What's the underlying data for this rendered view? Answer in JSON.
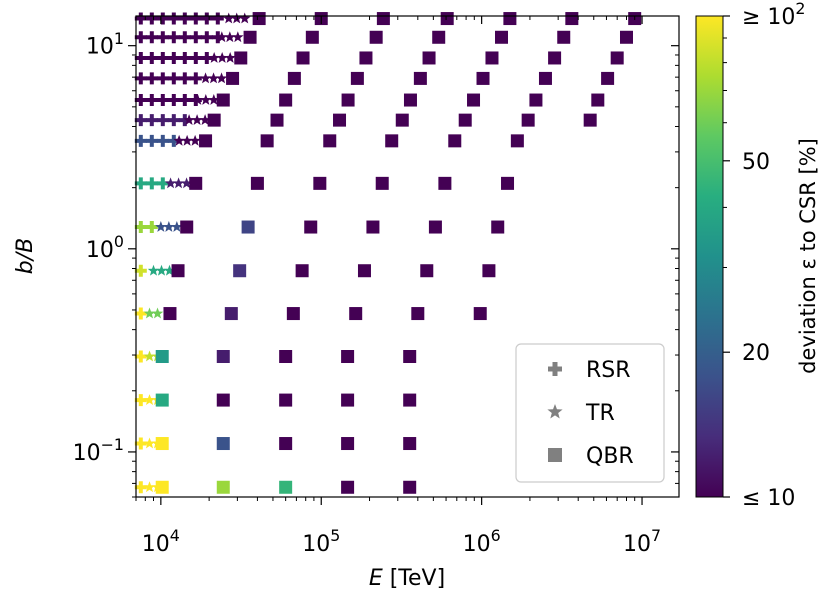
{
  "chart_data": {
    "type": "scatter",
    "xlabel": "E [TeV]",
    "ylabel": "b/B",
    "x_scale": "log",
    "y_scale": "log",
    "xlim": [
      7000,
      17000000
    ],
    "ylim": [
      0.06,
      14
    ],
    "x_ticks": [
      {
        "v": 10000,
        "label": "10^4"
      },
      {
        "v": 100000,
        "label": "10^5"
      },
      {
        "v": 1000000,
        "label": "10^6"
      },
      {
        "v": 10000000,
        "label": "10^7"
      }
    ],
    "y_ticks": [
      {
        "v": 0.1,
        "label": "10^−1"
      },
      {
        "v": 1,
        "label": "10^0"
      },
      {
        "v": 10,
        "label": "10^1"
      }
    ],
    "colorbar": {
      "label": "deviation ε to CSR [%]",
      "scale": "log",
      "range": [
        10,
        100
      ],
      "ticks": [
        {
          "v": 10,
          "label": "≤ 10"
        },
        {
          "v": 20,
          "label": "20"
        },
        {
          "v": 50,
          "label": "50"
        },
        {
          "v": 100,
          "label": "≥ 10²"
        }
      ],
      "colormap": "viridis"
    },
    "legend": {
      "placement": "lower-right",
      "entries": [
        {
          "label": "RSR",
          "marker": "plus"
        },
        {
          "label": "TR",
          "marker": "star"
        },
        {
          "label": "QBR",
          "marker": "square"
        }
      ]
    },
    "rows": [
      {
        "b": 13.6,
        "rsr": {
          "from": 7500,
          "to": 26000,
          "dev": 10
        },
        "tr": {
          "from": 26500,
          "to": 36000,
          "dev": 10
        },
        "qbr": [
          {
            "x": 41000,
            "dev": 10
          },
          {
            "x": 100000,
            "dev": 10
          },
          {
            "x": 244000,
            "dev": 10
          },
          {
            "x": 610000,
            "dev": 10
          },
          {
            "x": 1500000,
            "dev": 10
          },
          {
            "x": 3650000,
            "dev": 10
          },
          {
            "x": 9000000,
            "dev": 10
          }
        ]
      },
      {
        "b": 11.0,
        "rsr": {
          "from": 7500,
          "to": 23500,
          "dev": 10
        },
        "tr": {
          "from": 24000,
          "to": 32000,
          "dev": 10
        },
        "qbr": [
          {
            "x": 36000,
            "dev": 10
          },
          {
            "x": 88000,
            "dev": 10
          },
          {
            "x": 220000,
            "dev": 10
          },
          {
            "x": 540000,
            "dev": 10
          },
          {
            "x": 1330000,
            "dev": 10
          },
          {
            "x": 3250000,
            "dev": 10
          },
          {
            "x": 8000000,
            "dev": 10
          }
        ]
      },
      {
        "b": 8.7,
        "rsr": {
          "from": 7500,
          "to": 21000,
          "dev": 10
        },
        "tr": {
          "from": 21500,
          "to": 29000,
          "dev": 10
        },
        "qbr": [
          {
            "x": 31500,
            "dev": 10
          },
          {
            "x": 77000,
            "dev": 10
          },
          {
            "x": 190000,
            "dev": 10
          },
          {
            "x": 470000,
            "dev": 10
          },
          {
            "x": 1160000,
            "dev": 10
          },
          {
            "x": 2850000,
            "dev": 10
          },
          {
            "x": 7000000,
            "dev": 10
          }
        ]
      },
      {
        "b": 6.9,
        "rsr": {
          "from": 7500,
          "to": 18500,
          "dev": 10
        },
        "tr": {
          "from": 19000,
          "to": 25500,
          "dev": 10
        },
        "qbr": [
          {
            "x": 28000,
            "dev": 10
          },
          {
            "x": 68000,
            "dev": 10
          },
          {
            "x": 168000,
            "dev": 10
          },
          {
            "x": 415000,
            "dev": 10
          },
          {
            "x": 1020000,
            "dev": 10
          },
          {
            "x": 2500000,
            "dev": 10
          },
          {
            "x": 6100000,
            "dev": 10
          }
        ]
      },
      {
        "b": 5.4,
        "rsr": {
          "from": 7500,
          "to": 16500,
          "dev": 10
        },
        "tr": {
          "from": 17000,
          "to": 22500,
          "dev": 10
        },
        "qbr": [
          {
            "x": 24500,
            "dev": 10
          },
          {
            "x": 60000,
            "dev": 10
          },
          {
            "x": 147000,
            "dev": 10
          },
          {
            "x": 360000,
            "dev": 10
          },
          {
            "x": 890000,
            "dev": 10
          },
          {
            "x": 2180000,
            "dev": 10
          },
          {
            "x": 5300000,
            "dev": 10
          }
        ]
      },
      {
        "b": 4.3,
        "rsr": {
          "from": 7500,
          "to": 14500,
          "dev": 12
        },
        "tr": {
          "from": 15000,
          "to": 20000,
          "dev": 10
        },
        "qbr": [
          {
            "x": 21500,
            "dev": 10
          },
          {
            "x": 53000,
            "dev": 10
          },
          {
            "x": 130000,
            "dev": 10
          },
          {
            "x": 320000,
            "dev": 10
          },
          {
            "x": 790000,
            "dev": 10
          },
          {
            "x": 1950000,
            "dev": 10
          },
          {
            "x": 4750000,
            "dev": 10
          }
        ]
      },
      {
        "b": 3.4,
        "rsr": {
          "from": 7500,
          "to": 12500,
          "dev": 18
        },
        "tr": {
          "from": 13000,
          "to": 17500,
          "dev": 10
        },
        "qbr": [
          {
            "x": 19000,
            "dev": 10
          },
          {
            "x": 46000,
            "dev": 10
          },
          {
            "x": 113000,
            "dev": 10
          },
          {
            "x": 275000,
            "dev": 10
          },
          {
            "x": 680000,
            "dev": 10
          },
          {
            "x": 1670000,
            "dev": 10
          }
        ]
      },
      {
        "b": 2.1,
        "rsr": {
          "from": 7500,
          "to": 11000,
          "dev": 40
        },
        "tr": {
          "from": 11500,
          "to": 15000,
          "dev": 12
        },
        "qbr": [
          {
            "x": 16500,
            "dev": 10
          },
          {
            "x": 40000,
            "dev": 10
          },
          {
            "x": 98000,
            "dev": 10
          },
          {
            "x": 240000,
            "dev": 10
          },
          {
            "x": 590000,
            "dev": 10
          },
          {
            "x": 1450000,
            "dev": 10
          }
        ]
      },
      {
        "b": 1.28,
        "rsr": {
          "from": 7500,
          "to": 9500,
          "dev": 70
        },
        "tr": {
          "from": 10000,
          "to": 13000,
          "dev": 18
        },
        "qbr": [
          {
            "x": 14500,
            "dev": 10
          },
          {
            "x": 35000,
            "dev": 16
          },
          {
            "x": 86000,
            "dev": 10
          },
          {
            "x": 210000,
            "dev": 10
          },
          {
            "x": 515000,
            "dev": 10
          },
          {
            "x": 1260000,
            "dev": 10
          }
        ]
      },
      {
        "b": 0.78,
        "rsr": {
          "from": 7500,
          "to": 8700,
          "dev": 85
        },
        "tr": {
          "from": 9000,
          "to": 11500,
          "dev": 40
        },
        "qbr": [
          {
            "x": 12800,
            "dev": 10
          },
          {
            "x": 31000,
            "dev": 14
          },
          {
            "x": 76000,
            "dev": 10
          },
          {
            "x": 186000,
            "dev": 10
          },
          {
            "x": 455000,
            "dev": 10
          },
          {
            "x": 1110000,
            "dev": 10
          }
        ]
      },
      {
        "b": 0.48,
        "rsr": {
          "from": 7500,
          "to": 8000,
          "dev": 100
        },
        "tr": {
          "from": 8500,
          "to": 10500,
          "dev": 60
        },
        "qbr": [
          {
            "x": 11400,
            "dev": 10
          },
          {
            "x": 27500,
            "dev": 12
          },
          {
            "x": 67000,
            "dev": 10
          },
          {
            "x": 164000,
            "dev": 10
          },
          {
            "x": 400000,
            "dev": 10
          },
          {
            "x": 980000,
            "dev": 10
          }
        ]
      },
      {
        "b": 0.295,
        "rsr": {
          "from": 7500,
          "to": 8000,
          "dev": 100
        },
        "tr": {
          "from": 8500,
          "to": 10000,
          "dev": 80
        },
        "qbr": [
          {
            "x": 10200,
            "dev": 35
          },
          {
            "x": 24500,
            "dev": 12
          },
          {
            "x": 60000,
            "dev": 10
          },
          {
            "x": 146000,
            "dev": 10
          },
          {
            "x": 356000,
            "dev": 10
          }
        ]
      },
      {
        "b": 0.18,
        "rsr": {
          "from": 7500,
          "to": 8000,
          "dev": 100
        },
        "tr": {
          "from": 8500,
          "to": 10000,
          "dev": 100
        },
        "qbr": [
          {
            "x": 10200,
            "dev": 40
          },
          {
            "x": 24500,
            "dev": 10
          },
          {
            "x": 60000,
            "dev": 10
          },
          {
            "x": 146000,
            "dev": 10
          },
          {
            "x": 356000,
            "dev": 10
          }
        ]
      },
      {
        "b": 0.11,
        "rsr": {
          "from": 7500,
          "to": 8000,
          "dev": 100
        },
        "tr": {
          "from": 8500,
          "to": 10000,
          "dev": 100
        },
        "qbr": [
          {
            "x": 10200,
            "dev": 100
          },
          {
            "x": 24500,
            "dev": 18
          },
          {
            "x": 60000,
            "dev": 10
          },
          {
            "x": 146000,
            "dev": 10
          },
          {
            "x": 356000,
            "dev": 10
          }
        ]
      },
      {
        "b": 0.067,
        "rsr": {
          "from": 7500,
          "to": 8000,
          "dev": 100
        },
        "tr": {
          "from": 8500,
          "to": 10000,
          "dev": 100
        },
        "qbr": [
          {
            "x": 10200,
            "dev": 100
          },
          {
            "x": 24500,
            "dev": 70
          },
          {
            "x": 60000,
            "dev": 45
          },
          {
            "x": 146000,
            "dev": 10
          },
          {
            "x": 356000,
            "dev": 10
          }
        ]
      }
    ]
  }
}
